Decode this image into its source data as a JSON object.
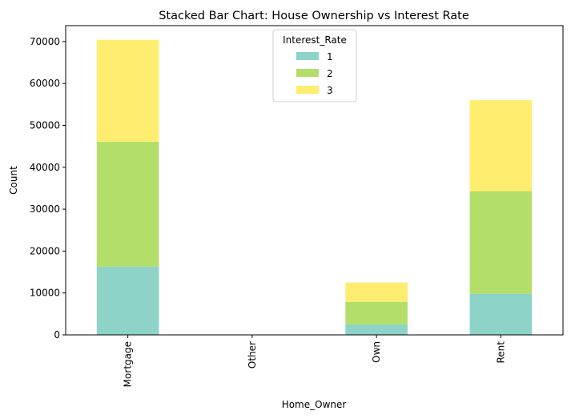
{
  "chart_data": {
    "type": "bar",
    "stacked": true,
    "title": "Stacked Bar Chart: House Ownership vs Interest Rate",
    "xlabel": "Home_Owner",
    "ylabel": "Count",
    "categories": [
      "Mortgage",
      "Other",
      "Own",
      "Rent"
    ],
    "series": [
      {
        "name": "1",
        "color": "#8dd3c7",
        "values": [
          16300,
          0,
          2500,
          9800
        ]
      },
      {
        "name": "2",
        "color": "#b3de69",
        "values": [
          29800,
          10,
          5400,
          24500
        ]
      },
      {
        "name": "3",
        "color": "#ffed6f",
        "values": [
          24300,
          10,
          4600,
          21700
        ]
      }
    ],
    "ylim": [
      0,
      73800
    ],
    "yticks": [
      0,
      10000,
      20000,
      30000,
      40000,
      50000,
      60000,
      70000
    ],
    "legend": {
      "title": "Interest_Rate",
      "position": "top-center"
    },
    "grid": false
  }
}
